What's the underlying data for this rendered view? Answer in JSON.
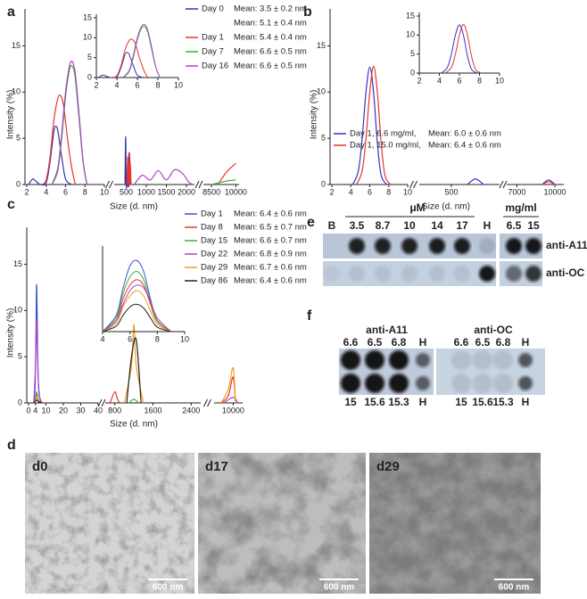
{
  "chart_data": [
    {
      "type": "line",
      "panel_label": "a",
      "xlabel": "Size (d. nm)",
      "ylabel": "Intensity (%)",
      "ylim": [
        0,
        19
      ],
      "yticks": [
        0,
        5,
        10,
        15
      ],
      "x_segments": [
        {
          "xlim": [
            2,
            10
          ],
          "xticks": [
            2,
            4,
            6,
            8,
            10
          ]
        },
        {
          "xlim": [
            200,
            2200
          ],
          "xticks": [
            500,
            1000,
            1500,
            2000
          ]
        },
        {
          "xlim": [
            8000,
            10200
          ],
          "xticks": [
            8500,
            10000
          ]
        }
      ],
      "series": [
        {
          "name": "Day 0",
          "color": "#3333aa",
          "means": [
            "Mean: 3.5 ± 0.2 nm",
            "Mean: 5.1 ± 0.4 nm"
          ],
          "x": [
            2.2,
            2.6,
            3.0,
            3.4,
            4.0,
            4.4,
            4.8,
            5.0,
            5.2,
            5.6,
            6.0,
            6.6,
            null,
            470,
            485,
            500,
            515,
            570,
            585,
            600
          ],
          "values": [
            0,
            0.6,
            0.3,
            0,
            0.2,
            2.5,
            5.8,
            6.3,
            5.8,
            3,
            0.6,
            0,
            null,
            0,
            5.2,
            0,
            0,
            0,
            3.4,
            0
          ]
        },
        {
          "name": "Day 1",
          "color": "#e8342c",
          "means": [
            "Mean: 5.4 ± 0.4 nm"
          ],
          "x": [
            3.6,
            4.0,
            4.4,
            4.8,
            5.2,
            5.5,
            5.8,
            6.2,
            6.6,
            7.0,
            null,
            520,
            535,
            550,
            565,
            580,
            600,
            620,
            null,
            8900,
            9200,
            9500,
            10000
          ],
          "values": [
            0,
            0.5,
            3,
            7,
            9.3,
            9.6,
            8.5,
            5,
            2,
            0,
            null,
            0,
            3,
            0,
            3.5,
            0,
            2.5,
            0,
            null,
            0,
            0.8,
            1.5,
            2.3
          ]
        },
        {
          "name": "Day 7",
          "color": "#3cae3c",
          "means": [
            "Mean: 6.6 ± 0.5 nm"
          ],
          "x": [
            4.6,
            5.2,
            5.6,
            6.0,
            6.4,
            6.7,
            7.0,
            7.4,
            7.8,
            8.2,
            null,
            8500,
            9000,
            9500,
            10000
          ],
          "values": [
            0,
            1.5,
            5,
            9.5,
            12.4,
            12.8,
            11.5,
            7,
            2.5,
            0,
            null,
            0,
            0.2,
            0.4,
            0.5
          ]
        },
        {
          "name": "Day 16",
          "color": "#b040c8",
          "means": [
            "Mean: 6.6 ± 0.5 nm"
          ],
          "x": [
            4.6,
            5.2,
            5.6,
            6.0,
            6.4,
            6.7,
            7.0,
            7.4,
            7.8,
            8.2,
            null,
            700,
            900,
            1100,
            1300,
            1500,
            1700,
            1900,
            2050,
            2150
          ],
          "values": [
            0,
            1.8,
            5.5,
            10,
            12.8,
            13.3,
            12,
            7.5,
            2.6,
            0,
            null,
            0,
            1,
            0.5,
            1.5,
            0.5,
            1.6,
            1.2,
            0.3,
            0
          ]
        }
      ],
      "inset": {
        "xlim": [
          2,
          10
        ],
        "xticks": [
          2,
          4,
          6,
          8,
          10
        ],
        "ylim": [
          0,
          15
        ],
        "yticks": [
          0,
          5,
          10,
          15
        ]
      }
    },
    {
      "type": "line",
      "panel_label": "b",
      "xlabel": "Size (d. nm)",
      "ylabel": "Intensity (%)",
      "ylim": [
        0,
        19
      ],
      "yticks": [
        0,
        5,
        10,
        15
      ],
      "x_segments": [
        {
          "xlim": [
            2,
            10
          ],
          "xticks": [
            2,
            4,
            6,
            8,
            10
          ]
        },
        {
          "xlim": [
            100,
            1100
          ],
          "xticks": [
            500
          ]
        },
        {
          "xlim": [
            6200,
            10700
          ],
          "xticks": [
            7000,
            10000
          ]
        }
      ],
      "series": [
        {
          "name": "Day 1, 6.6 mg/ml,",
          "color": "#3333cc",
          "means": [
            "Mean: 6.0 ± 0.6 nm"
          ],
          "x": [
            4.2,
            4.8,
            5.2,
            5.6,
            6.0,
            6.4,
            6.8,
            7.2,
            7.8,
            null,
            700,
            800,
            900,
            null,
            9000,
            9500,
            10000
          ],
          "values": [
            0,
            1.5,
            5,
            10,
            12.7,
            10,
            4.5,
            1,
            0,
            null,
            0,
            0.6,
            0,
            null,
            0,
            0.5,
            0
          ]
        },
        {
          "name": "Day 1, 15.0 mg/ml,",
          "color": "#e8342c",
          "means": [
            "Mean: 6.4 ± 0.6 nm"
          ],
          "x": [
            4.6,
            5.2,
            5.6,
            6.0,
            6.4,
            6.8,
            7.2,
            7.6,
            8.2,
            null,
            9000,
            9500,
            10000
          ],
          "values": [
            0,
            1.5,
            5,
            10,
            12.8,
            10,
            4.5,
            1,
            0,
            null,
            0,
            0.3,
            0
          ]
        }
      ],
      "inset": {
        "xlim": [
          2,
          10
        ],
        "xticks": [
          2,
          4,
          6,
          8,
          10
        ],
        "ylim": [
          0,
          15
        ],
        "yticks": [
          0,
          5,
          10,
          15
        ]
      }
    },
    {
      "type": "line",
      "panel_label": "c",
      "xlabel": "Size (d. nm)",
      "ylabel": "Intensity (%)",
      "ylim": [
        0,
        19
      ],
      "yticks": [
        0,
        5,
        10,
        15
      ],
      "x_segments": [
        {
          "xlim": [
            0,
            40
          ],
          "xticks": [
            0,
            4,
            10,
            20,
            30,
            40
          ]
        },
        {
          "xlim": [
            600,
            2600
          ],
          "xticks": [
            800,
            1600,
            2400
          ]
        },
        {
          "xlim": [
            9200,
            10400
          ],
          "xticks": [
            10000
          ]
        }
      ],
      "series": [
        {
          "name": "Day 1",
          "color": "#3355cc",
          "means": [
            "Mean: 6.4 ± 0.6 nm"
          ],
          "x": [
            3,
            3.8,
            4.3,
            4.6,
            5,
            5.5,
            6.5,
            8
          ],
          "values": [
            0,
            2,
            8,
            12.8,
            9,
            3,
            0.5,
            0
          ]
        },
        {
          "name": "Day 8",
          "color": "#e8342c",
          "means": [
            "Mean: 6.5 ± 0.7 nm"
          ],
          "x": [
            3,
            4,
            4.6,
            5.2,
            6,
            8,
            null,
            700,
            800,
            850,
            900,
            null,
            9500,
            9800,
            10000,
            10100
          ],
          "values": [
            0,
            0.5,
            1,
            0.6,
            0.2,
            0,
            null,
            0,
            1.2,
            0.5,
            0,
            null,
            0,
            0.8,
            2.8,
            0
          ]
        },
        {
          "name": "Day 15",
          "color": "#3cae3c",
          "means": [
            "Mean: 6.6 ± 0.7 nm"
          ],
          "x": [
            3,
            4,
            4.6,
            5.2,
            6,
            8,
            null,
            1100,
            1200,
            1300
          ],
          "values": [
            0,
            0.5,
            1.2,
            0.6,
            0.2,
            0,
            null,
            0,
            0.4,
            0
          ]
        },
        {
          "name": "Day 22",
          "color": "#b040c8",
          "means": [
            "Mean: 6.8 ± 0.9 nm"
          ],
          "x": [
            3,
            4,
            4.6,
            5.2,
            6,
            8,
            null,
            9600,
            10000,
            10200
          ],
          "values": [
            0,
            4,
            9,
            5,
            1,
            0,
            null,
            0,
            0.6,
            0
          ]
        },
        {
          "name": "Day 29",
          "color": "#f0a020",
          "means": [
            "Mean: 6.7 ± 0.6 nm"
          ],
          "x": [
            3,
            4,
            5,
            6,
            8,
            null,
            1000,
            1150,
            1200,
            1250,
            1400,
            null,
            9500,
            9800,
            10000,
            10100
          ],
          "values": [
            0,
            0.3,
            0.5,
            0.2,
            0,
            null,
            0,
            4,
            8.5,
            4,
            0,
            null,
            0,
            1.5,
            3.8,
            0
          ]
        },
        {
          "name": "Day 86",
          "color": "#222222",
          "means": [
            "Mean: 6.4 ± 0.6 nm"
          ],
          "x": [
            3,
            4,
            5,
            6,
            8,
            null,
            1050,
            1150,
            1250,
            1350
          ],
          "values": [
            0,
            0.2,
            0.3,
            0.1,
            0,
            null,
            0,
            5,
            6.8,
            0
          ]
        }
      ],
      "inset": {
        "xlim": [
          4,
          10
        ],
        "xticks": [
          4,
          6,
          8,
          10
        ],
        "ylim": [
          0,
          15
        ],
        "x": [
          4,
          5,
          5.5,
          6,
          6.5,
          7,
          7.5,
          8,
          9
        ],
        "series": [
          {
            "values": [
              0,
              3,
              8,
              12,
              13,
              11,
              6,
              2,
              0
            ]
          },
          {
            "values": [
              0,
              2,
              6,
              8.5,
              9.5,
              8.5,
              5,
              1.8,
              0
            ]
          },
          {
            "values": [
              0,
              2.5,
              7,
              10,
              11,
              9.5,
              5.5,
              2,
              0
            ]
          },
          {
            "values": [
              0,
              2,
              5,
              7.5,
              8.5,
              8,
              5.5,
              2.5,
              0
            ]
          },
          {
            "values": [
              0,
              1.5,
              4.5,
              6.5,
              7.5,
              6.5,
              3.8,
              1.3,
              0
            ]
          },
          {
            "values": [
              0,
              1,
              3,
              4.5,
              5,
              4.3,
              2.5,
              0.8,
              0
            ]
          }
        ]
      }
    }
  ],
  "blot_e": {
    "panel_label": "e",
    "unit_left": "μM",
    "unit_right": "mg/ml",
    "columns": [
      "B",
      "3.5",
      "8.7",
      "10",
      "14",
      "17",
      "H",
      "6.5",
      "15"
    ],
    "rows": [
      "anti-A11",
      "anti-OC"
    ]
  },
  "blot_f": {
    "panel_label": "f",
    "groups": [
      "anti-A11",
      "anti-OC"
    ],
    "top": [
      "6.6",
      "6.5",
      "6.8",
      "H"
    ],
    "bottom": [
      "15",
      "15.6",
      "15.3",
      "H"
    ]
  },
  "tem": {
    "panel_label": "d",
    "images": [
      {
        "label": "d0",
        "scale": "600 nm"
      },
      {
        "label": "d17",
        "scale": "600 nm"
      },
      {
        "label": "d29",
        "scale": "600 nm"
      }
    ]
  }
}
